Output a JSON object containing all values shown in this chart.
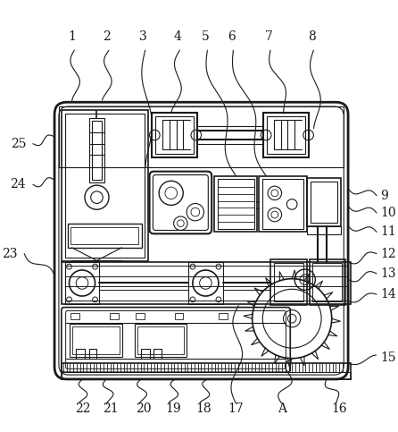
{
  "bg_color": "#ffffff",
  "line_color": "#1a1a1a",
  "fig_width": 4.46,
  "fig_height": 4.83,
  "top_labels": [
    "1",
    "2",
    "3",
    "4",
    "5",
    "6",
    "7",
    "8"
  ],
  "right_labels": [
    "9",
    "10",
    "11",
    "12",
    "13",
    "14",
    "15"
  ],
  "left_labels": [
    "25",
    "24",
    "23"
  ],
  "bottom_labels": [
    "22",
    "21",
    "20",
    "19",
    "18",
    "17",
    "A",
    "16"
  ]
}
